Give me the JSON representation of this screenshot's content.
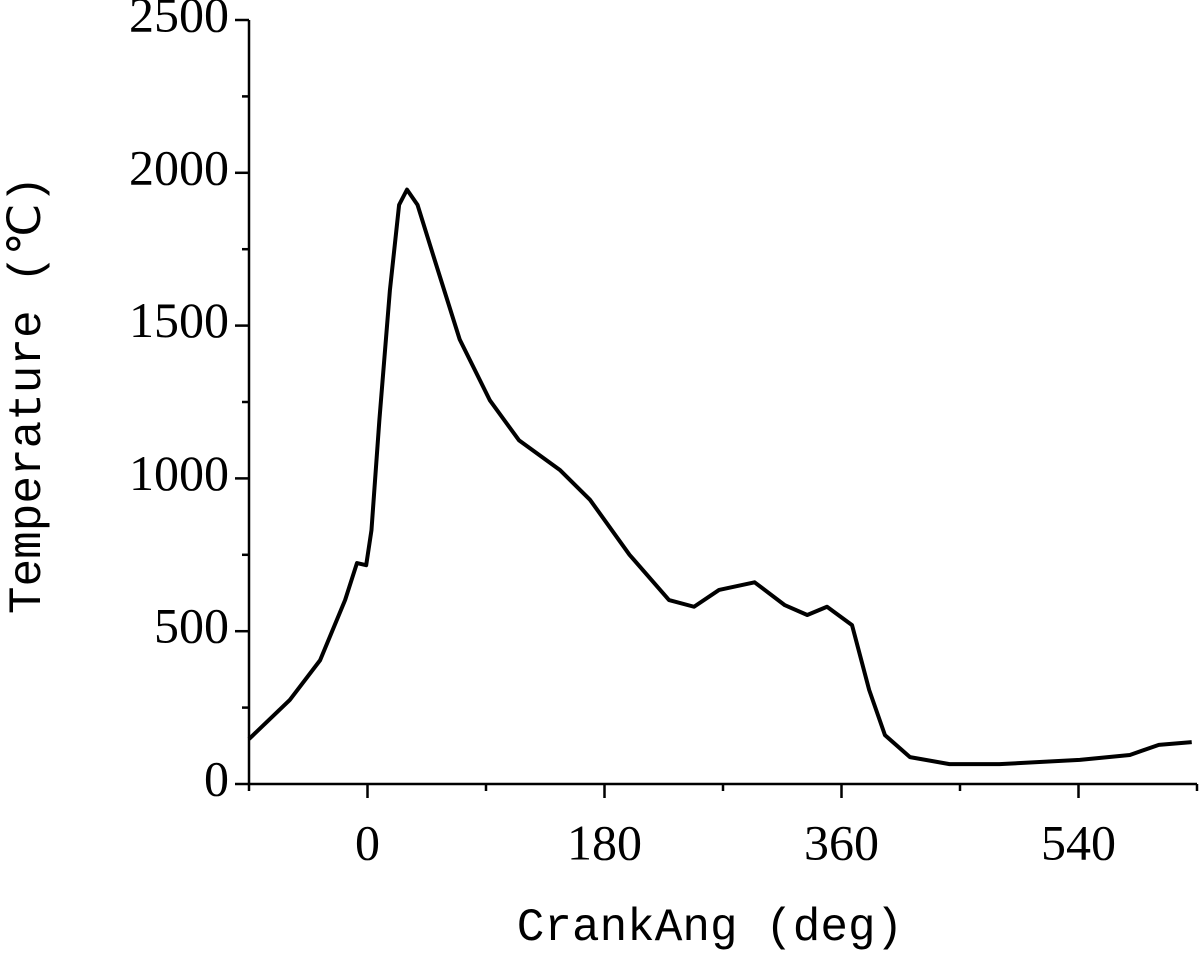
{
  "chart_data": {
    "type": "line",
    "x_label": "CrankAng (deg)",
    "y_label": "Temperature (℃)",
    "xlim": [
      -90,
      630
    ],
    "xticks": [
      0,
      180,
      360,
      540
    ],
    "xminorticks": [
      -90,
      90,
      270,
      450,
      630
    ],
    "ylim": [
      0,
      2500
    ],
    "yticks": [
      0,
      500,
      1000,
      1500,
      2000,
      2500
    ],
    "yminorticks": [
      250,
      750,
      1250,
      1750,
      2250
    ],
    "grid": false,
    "series": [
      {
        "color": "#000000",
        "x": [
          -90,
          -59,
          -36,
          -17,
          -8,
          -1,
          3,
          9,
          17,
          24,
          30,
          38,
          51,
          70,
          93,
          115,
          146,
          169,
          199,
          229,
          248,
          267,
          294,
          317,
          334,
          349,
          368,
          381,
          393,
          412,
          442,
          480,
          541,
          579,
          601,
          626
        ],
        "values": [
          147,
          275,
          405,
          602,
          723,
          716,
          830,
          1190,
          1615,
          1895,
          1945,
          1895,
          1715,
          1455,
          1255,
          1125,
          1028,
          930,
          750,
          602,
          580,
          635,
          660,
          585,
          553,
          580,
          520,
          308,
          160,
          88,
          65,
          65,
          79,
          95,
          128,
          137
        ]
      }
    ]
  }
}
